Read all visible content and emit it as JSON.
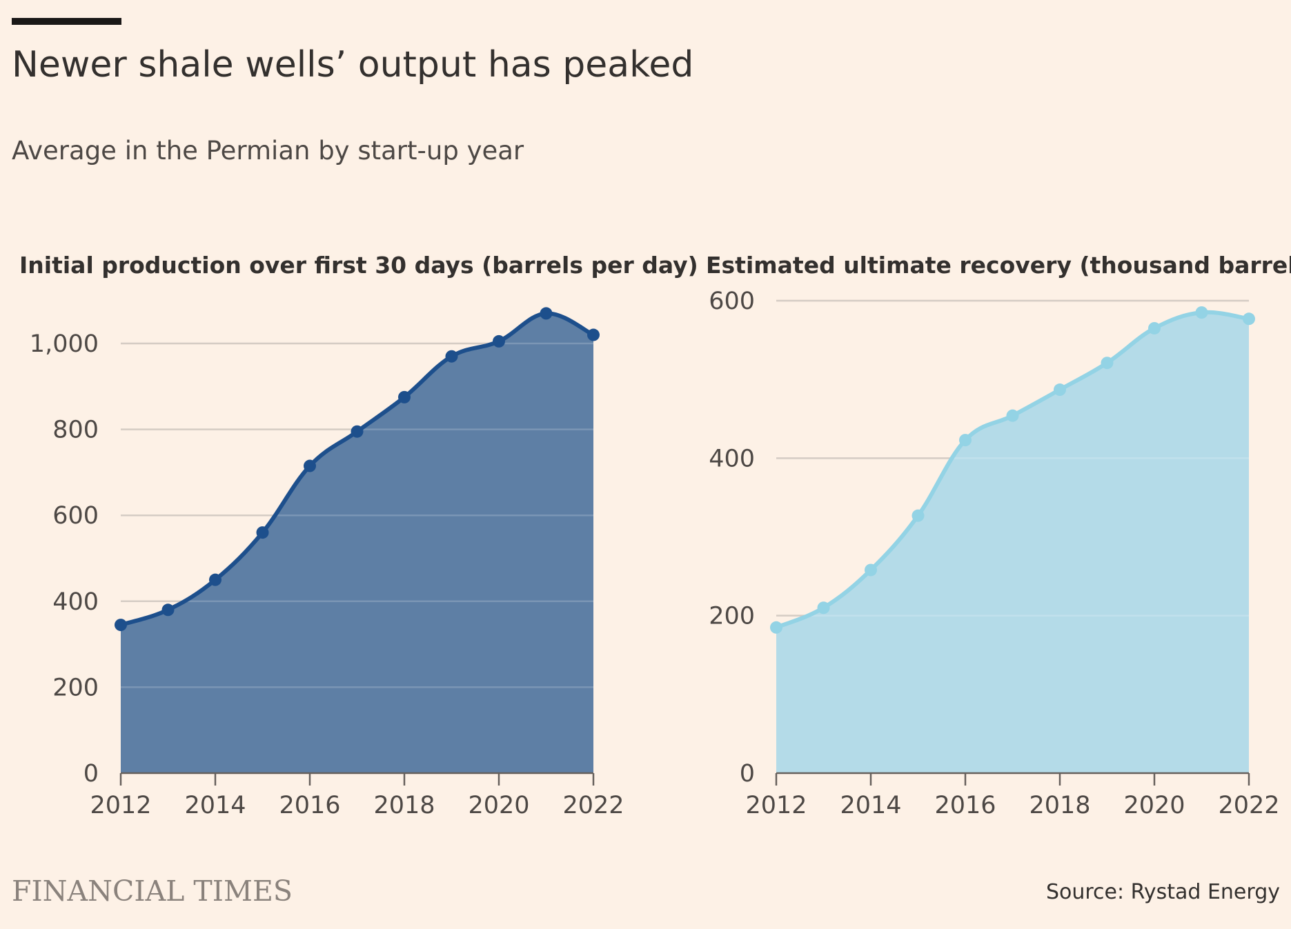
{
  "header": {
    "title": "Newer shale wells’ output has peaked",
    "subtitle": "Average in the Permian by start-up year"
  },
  "footer": {
    "brand": "FINANCIAL TIMES",
    "source": "Source: Rystad Energy"
  },
  "colors": {
    "background": "#fdf1e6",
    "left_line": "#1d4f8c",
    "left_fill": "#5e7fa5",
    "right_line": "#93d3e5",
    "right_fill": "#b4dbe8"
  },
  "chart_data": [
    {
      "type": "area",
      "title": "Initial production over first 30 days (barrels per day)",
      "xlabel": "",
      "ylabel": "",
      "x": [
        2012,
        2013,
        2014,
        2015,
        2016,
        2017,
        2018,
        2019,
        2020,
        2021,
        2022
      ],
      "x_tick_labels": [
        "2012",
        "2014",
        "2016",
        "2018",
        "2020",
        "2022"
      ],
      "y_tick_labels": [
        "0",
        "200",
        "400",
        "600",
        "800",
        "1,000"
      ],
      "ylim": [
        0,
        1000
      ],
      "series": [
        {
          "values": [
            345,
            380,
            450,
            560,
            715,
            795,
            875,
            970,
            1005,
            1070,
            1020
          ]
        }
      ],
      "grid": true,
      "markers": true
    },
    {
      "type": "area",
      "title": "Estimated ultimate recovery (thousand barrels)",
      "xlabel": "",
      "ylabel": "",
      "x": [
        2012,
        2013,
        2014,
        2015,
        2016,
        2017,
        2018,
        2019,
        2020,
        2021,
        2022
      ],
      "x_tick_labels": [
        "2012",
        "2014",
        "2016",
        "2018",
        "2020",
        "2022"
      ],
      "y_tick_labels": [
        "0",
        "200",
        "400",
        "600"
      ],
      "ylim": [
        0,
        600
      ],
      "series": [
        {
          "values": [
            185,
            210,
            258,
            327,
            423,
            454,
            487,
            521,
            565,
            585,
            577
          ]
        }
      ],
      "grid": true,
      "markers": true
    }
  ]
}
